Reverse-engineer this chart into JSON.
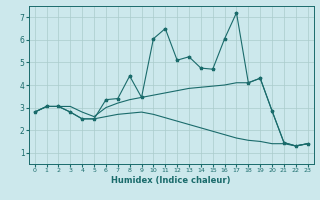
{
  "xlabel": "Humidex (Indice chaleur)",
  "bg_color": "#cce8ec",
  "grid_color": "#aacccc",
  "line_color": "#1a6b6b",
  "xlim": [
    -0.5,
    23.5
  ],
  "ylim": [
    0.5,
    7.5
  ],
  "yticks": [
    1,
    2,
    3,
    4,
    5,
    6,
    7
  ],
  "xticks": [
    0,
    1,
    2,
    3,
    4,
    5,
    6,
    7,
    8,
    9,
    10,
    11,
    12,
    13,
    14,
    15,
    16,
    17,
    18,
    19,
    20,
    21,
    22,
    23
  ],
  "line1_x": [
    0,
    1,
    2,
    3,
    4,
    5,
    6,
    7,
    8,
    9,
    10,
    11,
    12,
    13,
    14,
    15,
    16,
    17,
    18,
    19,
    20,
    21,
    22,
    23
  ],
  "line1_y": [
    2.8,
    3.05,
    3.05,
    2.8,
    2.5,
    2.5,
    3.35,
    3.4,
    4.4,
    3.45,
    6.05,
    6.5,
    5.1,
    5.25,
    4.75,
    4.7,
    6.05,
    7.2,
    4.1,
    4.3,
    2.85,
    1.45,
    1.3,
    1.4
  ],
  "line2_x": [
    0,
    1,
    2,
    3,
    4,
    5,
    6,
    7,
    8,
    9,
    10,
    11,
    12,
    13,
    14,
    15,
    16,
    17,
    18,
    19,
    20,
    21,
    22,
    23
  ],
  "line2_y": [
    2.8,
    3.05,
    3.05,
    3.05,
    2.8,
    2.6,
    3.0,
    3.2,
    3.35,
    3.45,
    3.55,
    3.65,
    3.75,
    3.85,
    3.9,
    3.95,
    4.0,
    4.1,
    4.1,
    4.3,
    2.85,
    1.45,
    1.3,
    1.4
  ],
  "line3_x": [
    0,
    1,
    2,
    3,
    4,
    5,
    6,
    7,
    8,
    9,
    10,
    11,
    12,
    13,
    14,
    15,
    16,
    17,
    18,
    19,
    20,
    21,
    22,
    23
  ],
  "line3_y": [
    2.8,
    3.05,
    3.05,
    2.8,
    2.5,
    2.5,
    2.6,
    2.7,
    2.75,
    2.8,
    2.7,
    2.55,
    2.4,
    2.25,
    2.1,
    1.95,
    1.8,
    1.65,
    1.55,
    1.5,
    1.4,
    1.4,
    1.3,
    1.4
  ]
}
